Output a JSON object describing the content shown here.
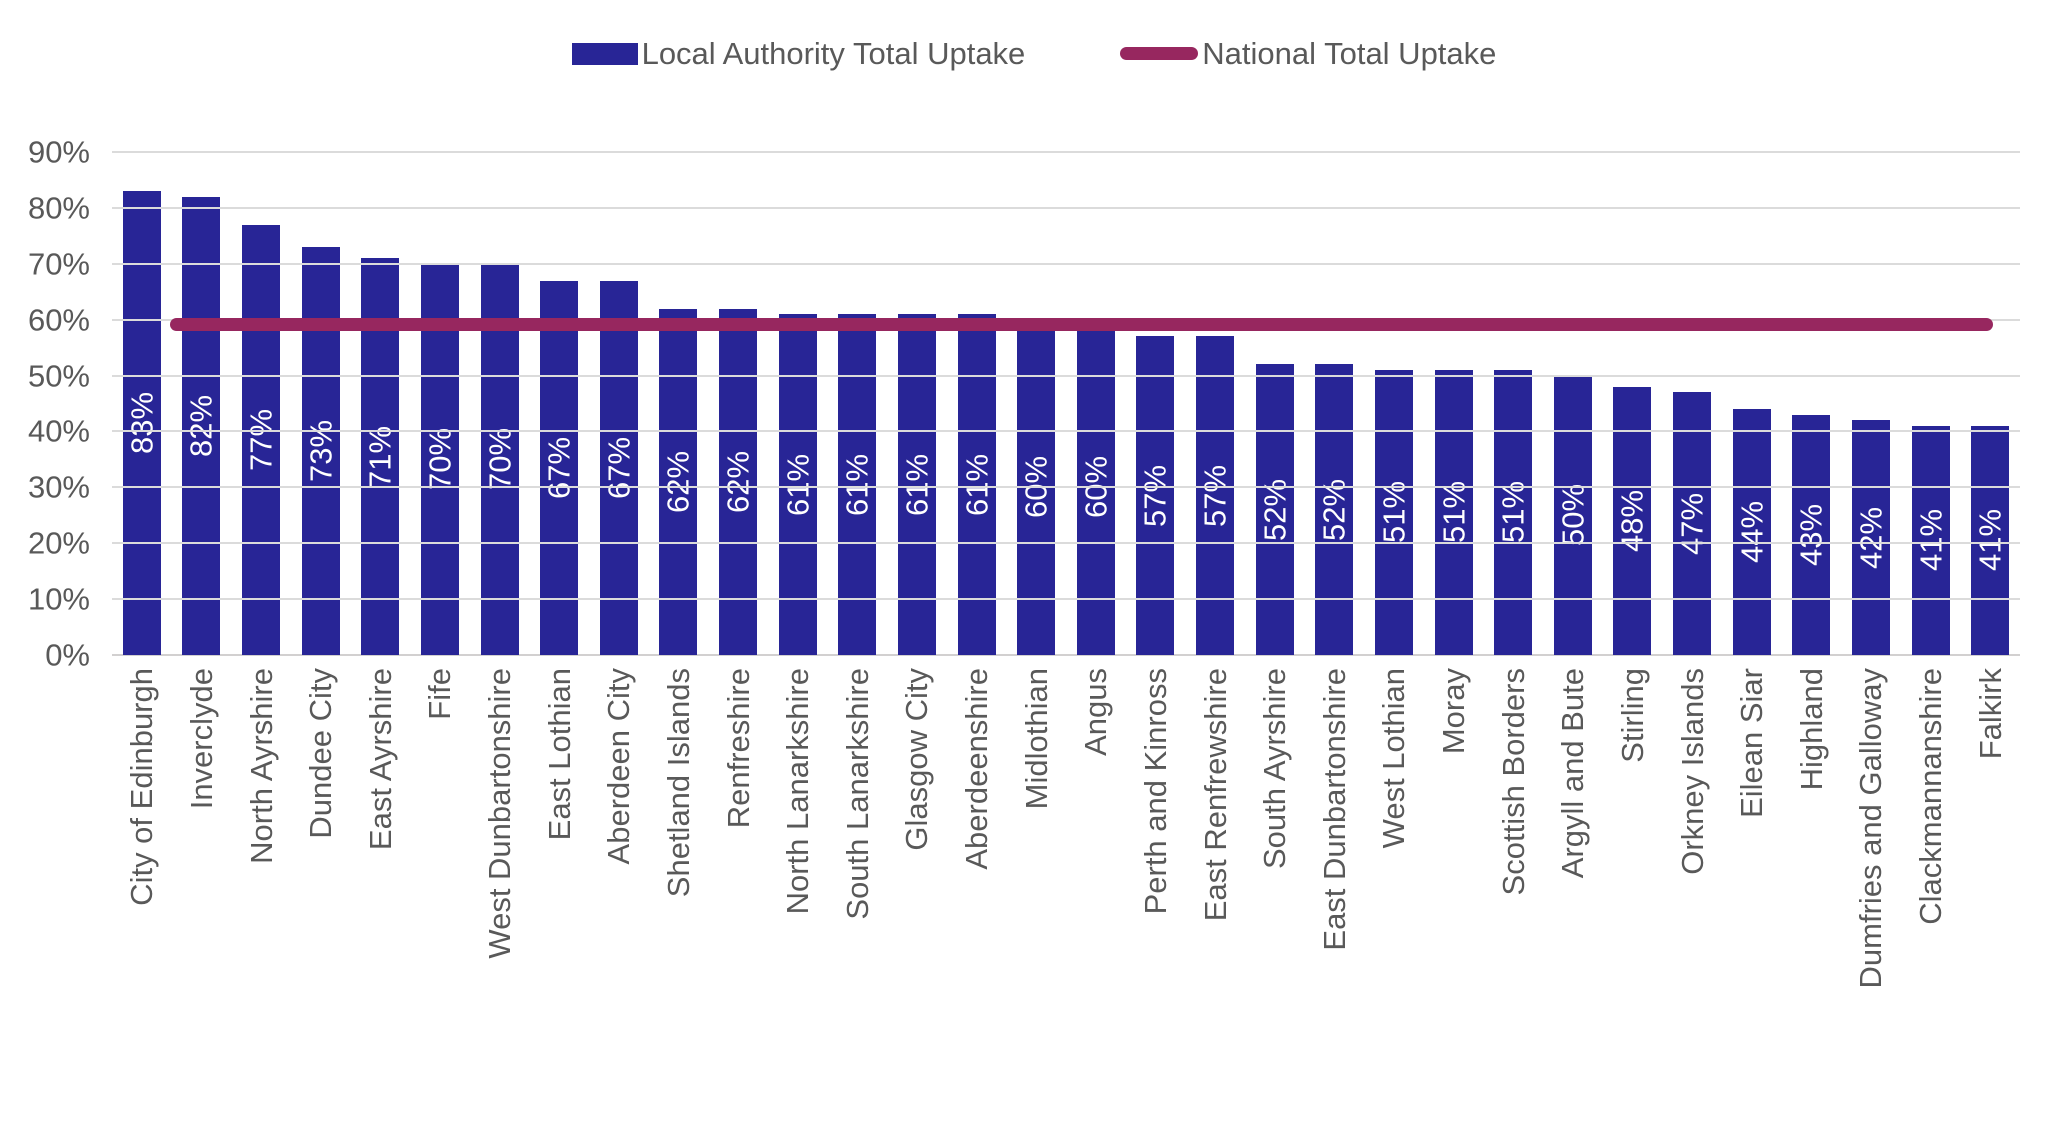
{
  "legend": {
    "items": [
      {
        "label": "Local Authority Total Uptake",
        "type": "bar",
        "color": "#282596"
      },
      {
        "label": "National Total Uptake",
        "type": "line",
        "color": "#97275F"
      }
    ]
  },
  "colors": {
    "bar": "#282596",
    "national_line": "#97275F",
    "gridline": "#DBDBDB",
    "axis_text": "#595959",
    "bar_label_text": "#ffffff"
  },
  "chart_data": {
    "type": "bar",
    "title": "",
    "xlabel": "",
    "ylabel": "",
    "ylim": [
      0,
      90
    ],
    "yticks": [
      90,
      80,
      70,
      60,
      50,
      40,
      30,
      20,
      10,
      0
    ],
    "ytick_format": "{v}%",
    "grid": true,
    "legend_position": "top",
    "categories": [
      "City of Edinburgh",
      "Inverclyde",
      "North Ayrshire",
      "Dundee City",
      "East Ayrshire",
      "Fife",
      "West Dunbartonshire",
      "East Lothian",
      "Aberdeen City",
      "Shetland Islands",
      "Renfreshire",
      "North Lanarkshire",
      "South Lanarkshire",
      "Glasgow City",
      "Aberdeenshire",
      "Midlothian",
      "Angus",
      "Perth and Kinross",
      "East Renfrewshire",
      "South Ayrshire",
      "East Dunbartonshire",
      "West Lothian",
      "Moray",
      "Scottish Borders",
      "Argyll and Bute",
      "Stirling",
      "Orkney Islands",
      "Eilean Siar",
      "Highland",
      "Dumfries and Galloway",
      "Clackmannanshire",
      "Falkirk"
    ],
    "series": [
      {
        "name": "Local Authority Total Uptake",
        "type": "bar",
        "color": "#282596",
        "values": [
          83,
          82,
          77,
          73,
          71,
          70,
          70,
          67,
          67,
          62,
          62,
          61,
          61,
          61,
          61,
          60,
          60,
          57,
          57,
          52,
          52,
          51,
          51,
          51,
          50,
          48,
          47,
          44,
          43,
          42,
          41,
          41
        ],
        "data_label_format": "{v}%"
      },
      {
        "name": "National Total Uptake",
        "type": "line",
        "color": "#97275F",
        "value": 59
      }
    ]
  }
}
